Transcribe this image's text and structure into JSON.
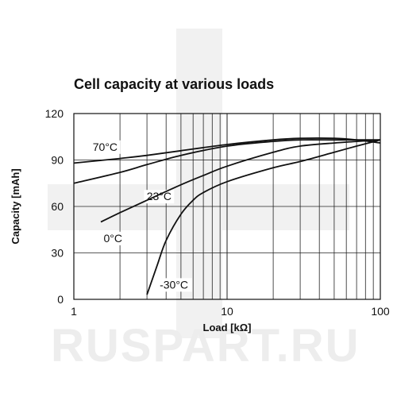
{
  "watermark": {
    "text": "RUSPART.RU"
  },
  "chart_data": {
    "type": "line",
    "title": "Cell capacity at various loads",
    "xlabel": "Load [kΩ]",
    "ylabel": "Capacity [mAh]",
    "xscale": "log",
    "xlim": [
      1,
      100
    ],
    "ylim": [
      0,
      120
    ],
    "xticks": [
      1,
      10,
      100
    ],
    "yticks": [
      0,
      30,
      60,
      90,
      120
    ],
    "grid": true,
    "line_color": "#111111",
    "series": [
      {
        "name": "70°C",
        "x": [
          1,
          2,
          3,
          5,
          10,
          20,
          30,
          50,
          70,
          100
        ],
        "y": [
          88,
          91,
          93,
          96,
          100,
          103,
          104,
          104,
          103,
          101
        ]
      },
      {
        "name": "23°C",
        "x": [
          1,
          2,
          3,
          5,
          10,
          20,
          30,
          50,
          70,
          100
        ],
        "y": [
          75,
          82,
          87,
          93,
          99,
          102,
          103,
          103,
          103,
          103
        ]
      },
      {
        "name": "0°C",
        "x": [
          1.5,
          2,
          3,
          5,
          7,
          10,
          20,
          30,
          50,
          70,
          100
        ],
        "y": [
          50,
          56,
          64,
          74,
          80,
          86,
          95,
          99,
          101,
          102,
          103
        ]
      },
      {
        "name": "-30°C",
        "x": [
          3,
          3.5,
          4,
          5,
          6,
          7,
          10,
          20,
          30,
          50,
          70,
          100
        ],
        "y": [
          3,
          22,
          38,
          55,
          64,
          69,
          76,
          85,
          89,
          95,
          99,
          103
        ]
      }
    ]
  }
}
